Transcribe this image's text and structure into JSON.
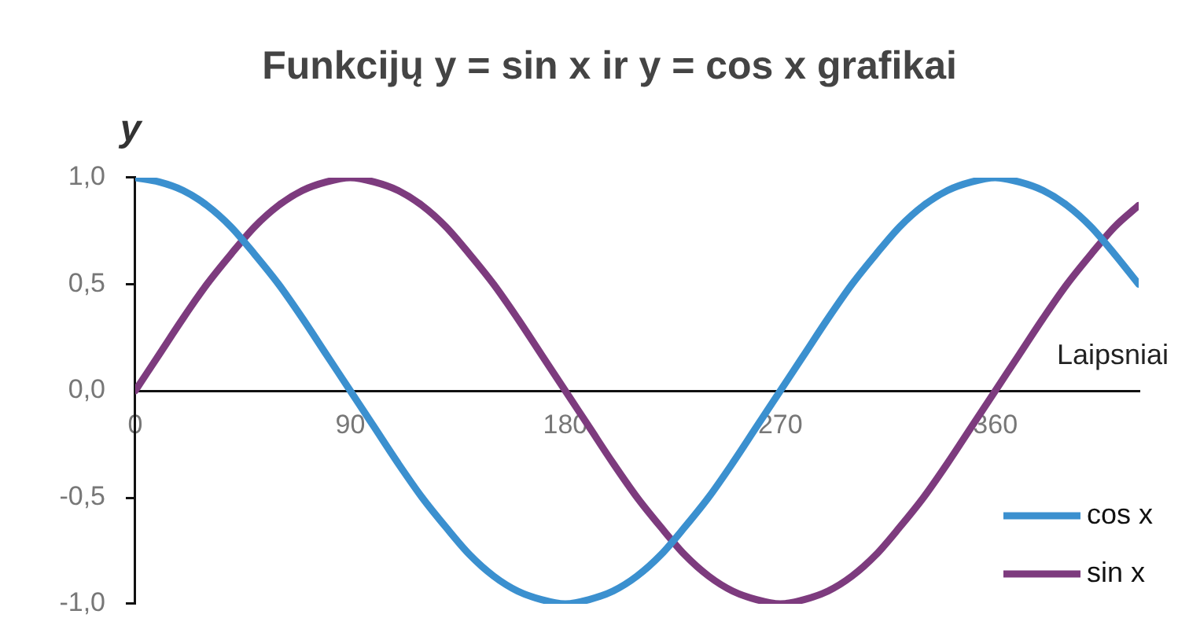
{
  "chart_data": {
    "type": "line",
    "title": "Funkcijų y = sin x ir y = cos x grafikai",
    "xlabel": "Laipsniai",
    "ylabel": "y",
    "x": [
      0,
      10,
      20,
      30,
      40,
      50,
      60,
      70,
      80,
      90,
      100,
      110,
      120,
      130,
      140,
      150,
      160,
      170,
      180,
      190,
      200,
      210,
      220,
      230,
      240,
      250,
      260,
      270,
      280,
      290,
      300,
      310,
      320,
      330,
      340,
      350,
      360,
      370,
      380,
      390,
      400,
      410,
      420
    ],
    "series": [
      {
        "name": "cos x",
        "color": "#3b90cf",
        "values": [
          1,
          0.98,
          0.94,
          0.87,
          0.77,
          0.64,
          0.5,
          0.34,
          0.17,
          0,
          -0.17,
          -0.34,
          -0.5,
          -0.64,
          -0.77,
          -0.87,
          -0.94,
          -0.98,
          -1,
          -0.98,
          -0.94,
          -0.87,
          -0.77,
          -0.64,
          -0.5,
          -0.34,
          -0.17,
          0,
          0.17,
          0.34,
          0.5,
          0.64,
          0.77,
          0.87,
          0.94,
          0.98,
          1,
          0.98,
          0.94,
          0.87,
          0.77,
          0.64,
          0.5
        ]
      },
      {
        "name": "sin x",
        "color": "#7d3b7e",
        "values": [
          0,
          0.17,
          0.34,
          0.5,
          0.64,
          0.77,
          0.87,
          0.94,
          0.98,
          1,
          0.98,
          0.94,
          0.87,
          0.77,
          0.64,
          0.5,
          0.34,
          0.17,
          0,
          -0.17,
          -0.34,
          -0.5,
          -0.64,
          -0.77,
          -0.87,
          -0.94,
          -0.98,
          -1,
          -0.98,
          -0.94,
          -0.87,
          -0.77,
          -0.64,
          -0.5,
          -0.34,
          -0.17,
          0,
          0.17,
          0.34,
          0.5,
          0.64,
          0.77,
          0.87
        ]
      }
    ],
    "xlim": [
      0,
      420
    ],
    "xticks": [
      0,
      90,
      180,
      270,
      360
    ],
    "ylim": [
      -1,
      1
    ],
    "yticks": [
      {
        "value": -1,
        "label": "-1,0"
      },
      {
        "value": -0.5,
        "label": "-0,5"
      },
      {
        "value": 0,
        "label": "0,0"
      },
      {
        "value": 0.5,
        "label": "0,5"
      },
      {
        "value": 1,
        "label": "1,0"
      }
    ],
    "grid": false,
    "legend": "bottom right",
    "marker": "none",
    "line_style": "solid"
  }
}
